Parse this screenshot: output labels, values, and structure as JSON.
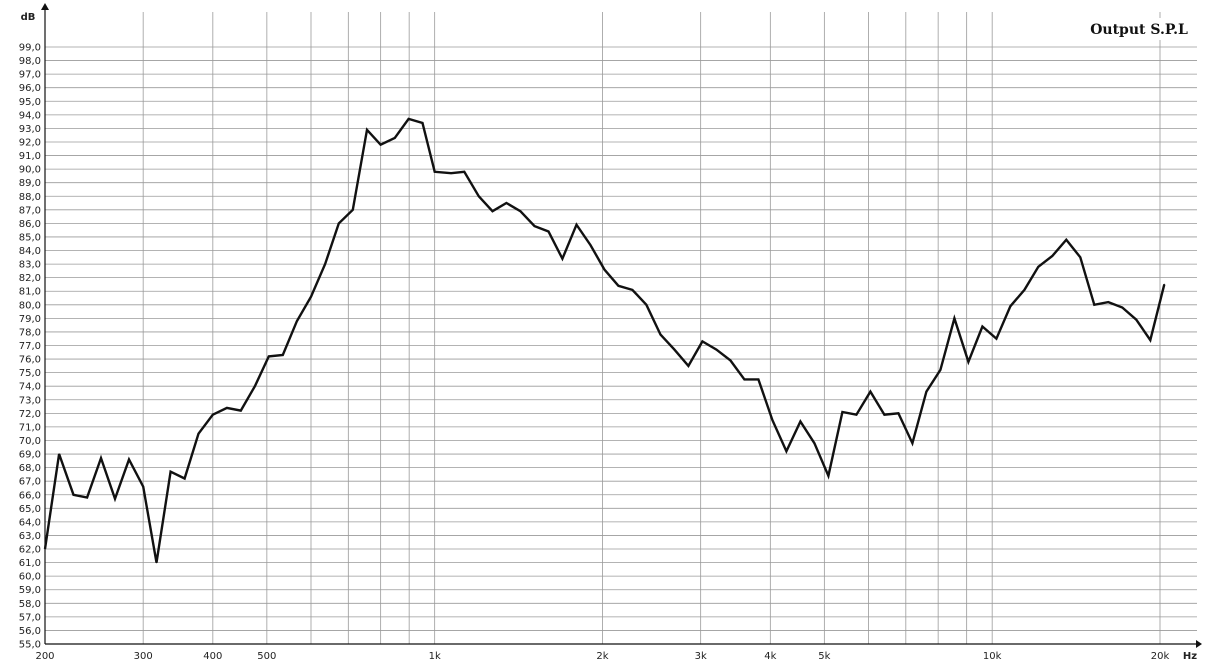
{
  "chart_data": {
    "type": "line",
    "title": "Output S.P.L",
    "xlabel": "Hz",
    "ylabel": "dB",
    "x_scale": "log",
    "xlim": [
      200,
      22000
    ],
    "ylim": [
      55,
      100
    ],
    "grid": true,
    "legend": "none",
    "line_color": "#111111",
    "grid_major_color": "#9a9a9a",
    "grid_minor_color": "#bcbcbc",
    "x_tick_values": [
      200,
      300,
      400,
      500,
      1000,
      2000,
      3000,
      4000,
      5000,
      10000,
      20000
    ],
    "x_tick_labels": [
      "200",
      "300",
      "400",
      "500",
      "1k",
      "2k",
      "3k",
      "4k",
      "5k",
      "10k",
      "20k"
    ],
    "x_grid_values": [
      200,
      300,
      400,
      500,
      600,
      700,
      800,
      900,
      1000,
      2000,
      3000,
      4000,
      5000,
      6000,
      7000,
      8000,
      9000,
      10000,
      20000
    ],
    "y_tick_values": [
      55,
      56,
      57,
      58,
      59,
      60,
      61,
      62,
      63,
      64,
      65,
      66,
      67,
      68,
      69,
      70,
      71,
      72,
      73,
      74,
      75,
      76,
      77,
      78,
      79,
      80,
      81,
      82,
      83,
      84,
      85,
      86,
      87,
      88,
      89,
      90,
      91,
      92,
      93,
      94,
      95,
      96,
      97,
      98,
      99
    ],
    "y_tick_labels": [
      "55,0",
      "56,0",
      "57,0",
      "58,0",
      "59,0",
      "60,0",
      "61,0",
      "62,0",
      "63,0",
      "64,0",
      "65,0",
      "66,0",
      "67,0",
      "68,0",
      "69,0",
      "70,0",
      "71,0",
      "72,0",
      "73,0",
      "74,0",
      "75,0",
      "76,0",
      "77,0",
      "78,0",
      "79,0",
      "80,0",
      "81,0",
      "82,0",
      "83,0",
      "84,0",
      "85,0",
      "86,0",
      "87,0",
      "88,0",
      "89,0",
      "90,0",
      "91,0",
      "92,0",
      "93,0",
      "94,0",
      "95,0",
      "96,0",
      "97,0",
      "98,0",
      "99,0"
    ],
    "series": [
      {
        "points": [
          [
            200,
            62.0
          ],
          [
            212,
            69.0
          ],
          [
            225,
            66.0
          ],
          [
            238,
            65.8
          ],
          [
            252,
            68.7
          ],
          [
            267,
            65.7
          ],
          [
            283,
            68.6
          ],
          [
            300,
            66.6
          ],
          [
            317,
            61.0
          ],
          [
            336,
            67.7
          ],
          [
            356,
            67.2
          ],
          [
            377,
            70.5
          ],
          [
            400,
            71.9
          ],
          [
            424,
            72.4
          ],
          [
            449,
            72.2
          ],
          [
            476,
            74.0
          ],
          [
            504,
            76.2
          ],
          [
            534,
            76.3
          ],
          [
            566,
            78.8
          ],
          [
            600,
            80.6
          ],
          [
            636,
            83.0
          ],
          [
            673,
            86.0
          ],
          [
            713,
            87.0
          ],
          [
            756,
            92.9
          ],
          [
            800,
            91.8
          ],
          [
            848,
            92.3
          ],
          [
            898,
            93.7
          ],
          [
            951,
            93.4
          ],
          [
            1000,
            89.8
          ],
          [
            1070,
            89.7
          ],
          [
            1130,
            89.8
          ],
          [
            1200,
            88.0
          ],
          [
            1270,
            86.9
          ],
          [
            1345,
            87.5
          ],
          [
            1425,
            86.9
          ],
          [
            1510,
            85.8
          ],
          [
            1600,
            85.4
          ],
          [
            1695,
            83.4
          ],
          [
            1796,
            85.9
          ],
          [
            1903,
            84.4
          ],
          [
            2016,
            82.6
          ],
          [
            2136,
            81.4
          ],
          [
            2263,
            81.1
          ],
          [
            2398,
            80.0
          ],
          [
            2541,
            77.8
          ],
          [
            2692,
            76.7
          ],
          [
            2852,
            75.5
          ],
          [
            3022,
            77.3
          ],
          [
            3202,
            76.7
          ],
          [
            3392,
            75.9
          ],
          [
            3594,
            74.5
          ],
          [
            3808,
            74.5
          ],
          [
            4035,
            71.5
          ],
          [
            4275,
            69.2
          ],
          [
            4529,
            71.4
          ],
          [
            4799,
            69.8
          ],
          [
            5085,
            67.4
          ],
          [
            5387,
            72.1
          ],
          [
            5708,
            71.9
          ],
          [
            6048,
            73.6
          ],
          [
            6408,
            71.9
          ],
          [
            6789,
            72.0
          ],
          [
            7193,
            69.8
          ],
          [
            7621,
            73.6
          ],
          [
            8075,
            75.2
          ],
          [
            8555,
            79.0
          ],
          [
            9064,
            75.8
          ],
          [
            9604,
            78.4
          ],
          [
            10175,
            77.5
          ],
          [
            10780,
            79.9
          ],
          [
            11422,
            81.1
          ],
          [
            12101,
            82.8
          ],
          [
            12821,
            83.6
          ],
          [
            13584,
            84.8
          ],
          [
            14392,
            83.5
          ],
          [
            15249,
            80.0
          ],
          [
            16156,
            80.2
          ],
          [
            17118,
            79.8
          ],
          [
            18136,
            78.9
          ],
          [
            19215,
            77.4
          ],
          [
            20358,
            81.5
          ]
        ]
      }
    ]
  }
}
